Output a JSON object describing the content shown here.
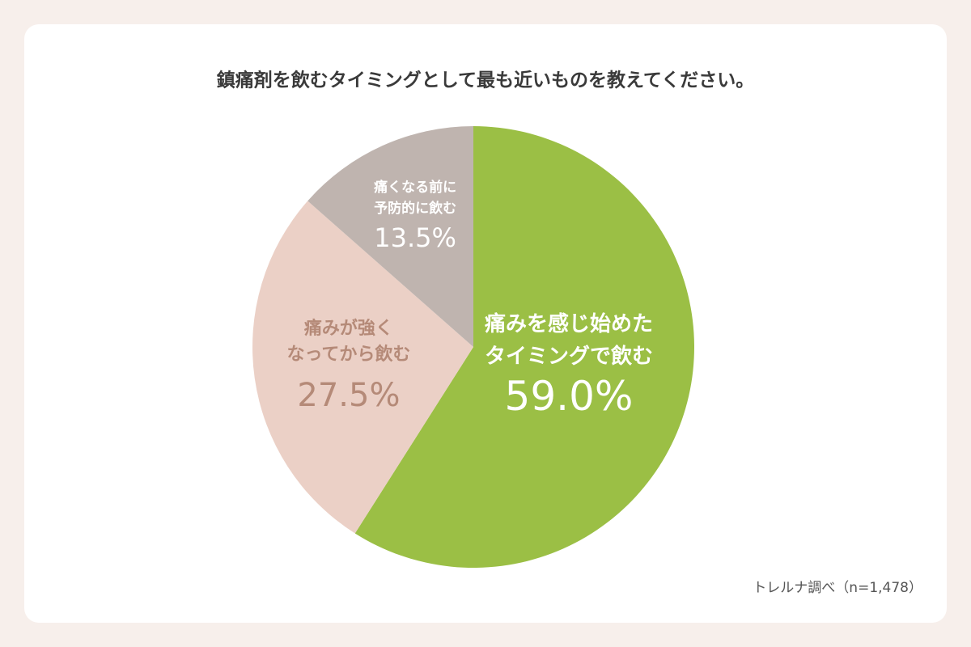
{
  "chart_data": {
    "type": "pie",
    "title": "鎮痛剤を飲むタイミングとして最も近いものを教えてください。",
    "categories": [
      [
        "痛みを感じ始めた",
        "タイミングで飲む"
      ],
      [
        "痛みが強く",
        "なってから飲む"
      ],
      [
        "痛くなる前に",
        "予防的に飲む"
      ]
    ],
    "values": [
      59.0,
      27.5,
      13.5
    ],
    "value_labels": [
      "59.0%",
      "27.5%",
      "13.5%"
    ],
    "colors": [
      "#9bbf45",
      "#ebd0c6",
      "#bfb4af"
    ],
    "label_colors": [
      "#ffffff",
      "#b58a78",
      "#ffffff"
    ],
    "source": "トレルナ調べ（n=1,478）"
  }
}
